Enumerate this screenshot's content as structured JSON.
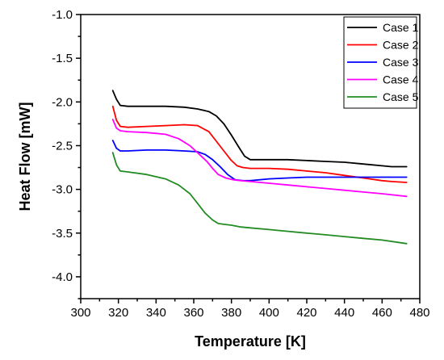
{
  "chart_data": {
    "type": "line",
    "title": "",
    "xlabel": "Temperature [K]",
    "ylabel": "Heat Flow [mW]",
    "xlim": [
      300,
      480
    ],
    "ylim": [
      -4.25,
      -1.0
    ],
    "x_ticks": [
      300,
      310,
      320,
      330,
      340,
      350,
      360,
      370,
      380,
      390,
      400,
      410,
      420,
      430,
      440,
      450,
      460,
      470,
      480
    ],
    "x_tick_labels": [
      "300",
      "320",
      "340",
      "360",
      "380",
      "400",
      "420",
      "440",
      "460",
      "480"
    ],
    "y_ticks": [
      -1.0,
      -1.5,
      -2.0,
      -2.5,
      -3.0,
      -3.5,
      -4.0
    ],
    "y_tick_labels": [
      "-1.0",
      "-1.5",
      "-2.0",
      "-2.5",
      "-3.0",
      "-3.5",
      "-4.0"
    ],
    "grid": false,
    "legend_position": "top-right",
    "series": [
      {
        "name": "Case 1",
        "color": "#000000",
        "x": [
          317,
          319,
          321,
          325,
          335,
          345,
          355,
          362,
          368,
          372,
          376,
          380,
          384,
          387,
          390,
          395,
          400,
          410,
          420,
          430,
          440,
          450,
          460,
          465,
          473
        ],
        "y": [
          -1.87,
          -1.97,
          -2.04,
          -2.05,
          -2.05,
          -2.05,
          -2.06,
          -2.08,
          -2.11,
          -2.16,
          -2.25,
          -2.38,
          -2.52,
          -2.62,
          -2.66,
          -2.66,
          -2.66,
          -2.66,
          -2.67,
          -2.68,
          -2.69,
          -2.71,
          -2.73,
          -2.74,
          -2.74
        ]
      },
      {
        "name": "Case 2",
        "color": "#ff0000",
        "x": [
          317,
          319,
          321,
          325,
          335,
          345,
          355,
          362,
          368,
          372,
          376,
          380,
          383,
          386,
          390,
          400,
          410,
          420,
          430,
          440,
          450,
          460,
          465,
          473
        ],
        "y": [
          -2.05,
          -2.21,
          -2.28,
          -2.29,
          -2.28,
          -2.27,
          -2.26,
          -2.27,
          -2.34,
          -2.45,
          -2.56,
          -2.67,
          -2.73,
          -2.75,
          -2.76,
          -2.76,
          -2.77,
          -2.79,
          -2.81,
          -2.84,
          -2.87,
          -2.9,
          -2.91,
          -2.92
        ]
      },
      {
        "name": "Case 3",
        "color": "#0000ff",
        "x": [
          317,
          319,
          321,
          325,
          335,
          345,
          355,
          362,
          366,
          370,
          374,
          378,
          382,
          386,
          390,
          400,
          410,
          420,
          430,
          440,
          450,
          460,
          473
        ],
        "y": [
          -2.44,
          -2.53,
          -2.56,
          -2.56,
          -2.55,
          -2.55,
          -2.56,
          -2.57,
          -2.6,
          -2.66,
          -2.74,
          -2.83,
          -2.89,
          -2.9,
          -2.9,
          -2.88,
          -2.87,
          -2.86,
          -2.86,
          -2.86,
          -2.86,
          -2.86,
          -2.86
        ]
      },
      {
        "name": "Case 4",
        "color": "#ff00ff",
        "x": [
          317,
          319,
          321,
          325,
          335,
          345,
          352,
          358,
          363,
          367,
          370,
          373,
          377,
          381,
          385,
          390,
          400,
          410,
          420,
          430,
          440,
          450,
          460,
          473
        ],
        "y": [
          -2.2,
          -2.3,
          -2.33,
          -2.34,
          -2.35,
          -2.37,
          -2.42,
          -2.5,
          -2.6,
          -2.68,
          -2.76,
          -2.83,
          -2.87,
          -2.89,
          -2.9,
          -2.91,
          -2.93,
          -2.95,
          -2.97,
          -2.99,
          -3.01,
          -3.03,
          -3.05,
          -3.08
        ]
      },
      {
        "name": "Case 5",
        "color": "#228b22",
        "x": [
          317,
          319,
          321,
          325,
          335,
          345,
          352,
          358,
          362,
          366,
          370,
          373,
          376,
          380,
          385,
          390,
          400,
          410,
          420,
          430,
          440,
          450,
          460,
          473
        ],
        "y": [
          -2.58,
          -2.72,
          -2.79,
          -2.8,
          -2.83,
          -2.88,
          -2.95,
          -3.05,
          -3.16,
          -3.27,
          -3.35,
          -3.39,
          -3.4,
          -3.41,
          -3.43,
          -3.44,
          -3.46,
          -3.48,
          -3.5,
          -3.52,
          -3.54,
          -3.56,
          -3.58,
          -3.62
        ]
      }
    ]
  }
}
